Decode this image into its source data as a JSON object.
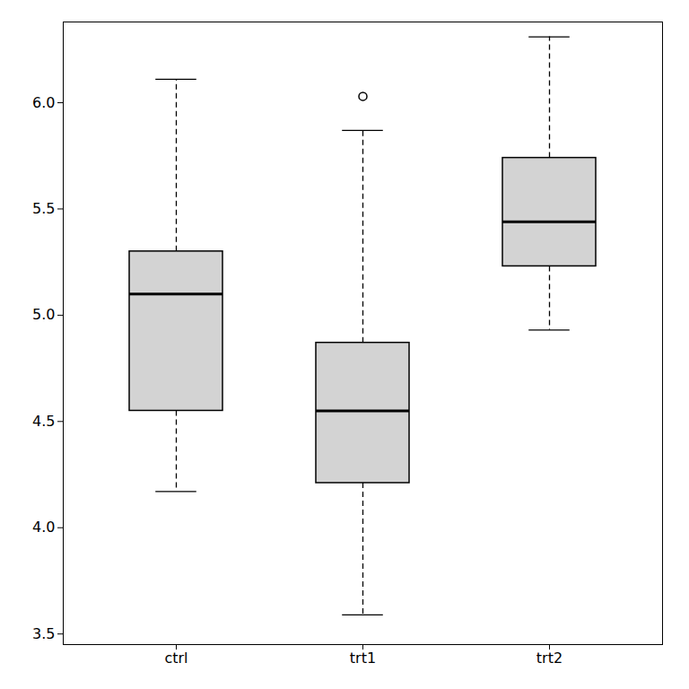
{
  "chart_data": {
    "type": "box",
    "categories": [
      "ctrl",
      "trt1",
      "trt2"
    ],
    "boxes": [
      {
        "q1": 4.55,
        "median": 5.1,
        "q3": 5.3,
        "whisker_low": 4.17,
        "whisker_high": 6.11,
        "outliers": []
      },
      {
        "q1": 4.21,
        "median": 4.55,
        "q3": 4.87,
        "whisker_low": 3.59,
        "whisker_high": 5.87,
        "outliers": [
          6.03
        ]
      },
      {
        "q1": 5.23,
        "median": 5.44,
        "q3": 5.74,
        "whisker_low": 4.93,
        "whisker_high": 6.31,
        "outliers": []
      }
    ],
    "color": "#d3d3d3",
    "line_style": "dashed",
    "marker": "circle",
    "ylim": [
      3.45,
      6.38
    ],
    "yticks": [
      3.5,
      {
        "value": 4.0,
        "label": "4.0"
      },
      4.5,
      {
        "value": 5.0,
        "label": "5.0"
      },
      5.5,
      {
        "value": 6.0,
        "label": "6.0"
      }
    ],
    "grid": false
  }
}
